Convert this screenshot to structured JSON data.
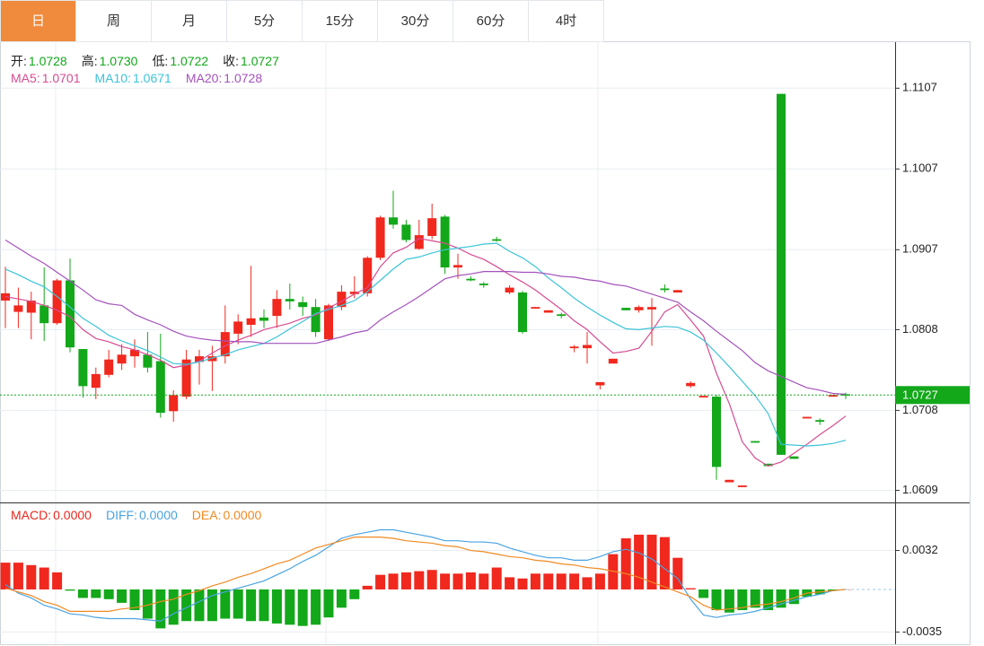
{
  "tabs": [
    "日",
    "周",
    "月",
    "5分",
    "15分",
    "30分",
    "60分",
    "4时"
  ],
  "active_tab": 0,
  "chart_data": [
    {
      "type": "candlestick",
      "info": [
        {
          "label": "开:",
          "value_label": "1.0728"
        },
        {
          "label": "高:",
          "value_label": "1.0730"
        },
        {
          "label": "低:",
          "value_label": "1.0722"
        },
        {
          "label": "收:",
          "value_label": "1.0727"
        }
      ],
      "open": [
        1.0844,
        1.083,
        1.0829,
        1.0838,
        1.0816,
        1.0869,
        1.0784,
        1.0736,
        1.0752,
        1.0766,
        1.0775,
        1.0777,
        1.0769,
        1.0707,
        1.0725,
        1.0768,
        1.0769,
        1.0775,
        1.0803,
        1.0814,
        1.0823,
        1.0825,
        1.0846,
        1.0842,
        1.0836,
        1.0796,
        1.0836,
        1.0852,
        1.0853,
        1.0897,
        1.0947,
        1.0938,
        1.0908,
        1.0924,
        1.0948,
        1.0885,
        1.0871,
        1.0865,
        1.092,
        1.0854,
        1.0854,
        1.0834,
        1.0829,
        1.0827,
        1.0785,
        1.0785,
        1.0739,
        1.0766,
        1.0835,
        1.0832,
        1.0833,
        1.0859,
        1.0854,
        1.0738,
        1.0724,
        1.0725,
        1.0619,
        1.0613,
        1.067,
        1.0642,
        1.11,
        1.0651,
        1.0698,
        1.0696,
        1.0725,
        1.0728
      ],
      "high": [
        1.0886,
        1.086,
        1.0855,
        1.0885,
        1.0871,
        1.0896,
        1.0784,
        1.0761,
        1.0783,
        1.079,
        1.0796,
        1.0805,
        1.0803,
        1.0733,
        1.0783,
        1.0783,
        1.0788,
        1.0838,
        1.0827,
        1.0887,
        1.0833,
        1.0857,
        1.0865,
        1.0849,
        1.0846,
        1.084,
        1.0863,
        1.0874,
        1.0899,
        1.0949,
        1.098,
        1.0944,
        1.0944,
        1.0964,
        1.095,
        1.0902,
        1.0874,
        1.0867,
        1.0923,
        1.0863,
        1.0856,
        1.0836,
        1.0832,
        1.0829,
        1.0789,
        1.0805,
        1.0743,
        1.0772,
        1.0835,
        1.0838,
        1.0847,
        1.0864,
        1.0857,
        1.0744,
        1.0726,
        1.0727,
        1.0622,
        1.0615,
        1.067,
        1.0642,
        1.11,
        1.0651,
        1.07,
        1.0698,
        1.0727,
        1.073
      ],
      "low": [
        1.081,
        1.081,
        1.0796,
        1.0794,
        1.0814,
        1.078,
        1.0724,
        1.0722,
        1.0749,
        1.0758,
        1.0761,
        1.0755,
        1.0699,
        1.0694,
        1.0722,
        1.074,
        1.0732,
        1.0766,
        1.079,
        1.0799,
        1.081,
        1.081,
        1.0833,
        1.0825,
        1.0799,
        1.0794,
        1.0832,
        1.0847,
        1.0849,
        1.0894,
        1.0933,
        1.0916,
        1.0907,
        1.092,
        1.0877,
        1.0871,
        1.0868,
        1.086,
        1.0917,
        1.0852,
        1.0803,
        1.0834,
        1.0829,
        1.0822,
        1.078,
        1.0766,
        1.0734,
        1.0766,
        1.0832,
        1.0829,
        1.0788,
        1.0854,
        1.0854,
        1.0736,
        1.0724,
        1.0622,
        1.0619,
        1.0613,
        1.0668,
        1.0639,
        1.0653,
        1.0648,
        1.0698,
        1.069,
        1.0725,
        1.0722
      ],
      "close": [
        1.0853,
        1.0838,
        1.0844,
        1.0816,
        1.0869,
        1.0786,
        1.0738,
        1.0753,
        1.0771,
        1.0777,
        1.0783,
        1.0761,
        1.0705,
        1.0727,
        1.0771,
        1.0775,
        1.0775,
        1.0805,
        1.0818,
        1.0822,
        1.0819,
        1.0846,
        1.0843,
        1.0836,
        1.0805,
        1.0838,
        1.0855,
        1.0855,
        1.0897,
        1.0947,
        1.0938,
        1.0919,
        1.0925,
        1.0946,
        1.0885,
        1.0888,
        1.0869,
        1.0863,
        1.0918,
        1.086,
        1.0805,
        1.0836,
        1.0832,
        1.0825,
        1.0787,
        1.0789,
        1.0743,
        1.0772,
        1.0832,
        1.0836,
        1.0836,
        1.0857,
        1.0857,
        1.0742,
        1.0726,
        1.0638,
        1.0622,
        1.0615,
        1.0668,
        1.0639,
        1.0653,
        1.0648,
        1.07,
        1.0694,
        1.0727,
        1.0727
      ],
      "up_color": "#f0281e",
      "down_color": "#12a81a",
      "series": [
        {
          "name": "MA5:",
          "color": "#d64c92",
          "values": [
            1.0849,
            1.0846,
            1.0843,
            1.0838,
            1.0832,
            1.0824,
            1.0808,
            1.0797,
            1.0793,
            1.0787,
            1.0783,
            1.0777,
            1.077,
            1.0761,
            1.0764,
            1.0769,
            1.0779,
            1.0788,
            1.0795,
            1.0801,
            1.0808,
            1.0812,
            1.0816,
            1.0822,
            1.0826,
            1.0835,
            1.0843,
            1.0852,
            1.086,
            1.0886,
            1.0903,
            1.091,
            1.0921,
            1.0918,
            1.0915,
            1.0909,
            1.0901,
            1.0895,
            1.0886,
            1.0876,
            1.0867,
            1.0857,
            1.0845,
            1.0833,
            1.0819,
            1.0808,
            1.0793,
            1.0779,
            1.0781,
            1.0785,
            1.0806,
            1.083,
            1.0839,
            1.082,
            1.08,
            1.0754,
            1.0716,
            1.0669,
            1.0649,
            1.0639,
            1.0644,
            1.0655,
            1.0666,
            1.0678,
            1.0689,
            1.0701
          ]
        },
        {
          "name": "MA10:",
          "color": "#3cc3d8",
          "values": [
            1.0883,
            1.0876,
            1.0868,
            1.0861,
            1.0849,
            1.0836,
            1.0822,
            1.0812,
            1.0801,
            1.0794,
            1.0788,
            1.0782,
            1.0774,
            1.0766,
            1.0765,
            1.0768,
            1.0773,
            1.0777,
            1.0783,
            1.0787,
            1.0791,
            1.0799,
            1.0809,
            1.0818,
            1.0828,
            1.0833,
            1.0838,
            1.0844,
            1.0855,
            1.0869,
            1.0883,
            1.0895,
            1.0898,
            1.0903,
            1.0907,
            1.0909,
            1.0911,
            1.0914,
            1.0915,
            1.0905,
            1.0897,
            1.0886,
            1.0872,
            1.086,
            1.0847,
            1.0836,
            1.0826,
            1.0817,
            1.0809,
            1.0808,
            1.081,
            1.0812,
            1.0811,
            1.0805,
            1.0795,
            1.0779,
            1.0762,
            1.0744,
            1.0726,
            1.0704,
            1.0666,
            1.0665,
            1.0664,
            1.0665,
            1.0667,
            1.0671
          ]
        },
        {
          "name": "MA20:",
          "color": "#a452bc",
          "values": [
            1.0919,
            1.0909,
            1.0899,
            1.089,
            1.0879,
            1.0868,
            1.0857,
            1.0845,
            1.084,
            1.0838,
            1.0827,
            1.082,
            1.0814,
            1.0806,
            1.08,
            1.0797,
            1.0795,
            1.0794,
            1.0793,
            1.0793,
            1.0791,
            1.0791,
            1.0791,
            1.0791,
            1.0791,
            1.0795,
            1.0799,
            1.0804,
            1.0807,
            1.082,
            1.083,
            1.0839,
            1.0849,
            1.086,
            1.0871,
            1.0875,
            1.0877,
            1.088,
            1.088,
            1.088,
            1.0879,
            1.0879,
            1.0877,
            1.0874,
            1.0873,
            1.087,
            1.0868,
            1.0864,
            1.0862,
            1.0857,
            1.0852,
            1.0847,
            1.0842,
            1.083,
            1.0819,
            1.0806,
            1.0794,
            1.0782,
            1.0767,
            1.0757,
            1.075,
            1.0743,
            1.0736,
            1.0733,
            1.0729,
            1.0728
          ]
        }
      ],
      "last_price": 1.0727,
      "last_color": "#12a81a",
      "ylim": [
        1.0594,
        1.1164
      ],
      "yticks": [
        1.1107,
        1.1007,
        1.0907,
        1.0808,
        1.0708,
        1.0609
      ],
      "grid": true
    },
    {
      "type": "macd",
      "up_color": "#f0281e",
      "down_color": "#12a81a",
      "series": [
        {
          "name": "MACD:",
          "color": "#e8281e",
          "value_label": "0.0000",
          "values": [
            0.0022,
            0.0022,
            0.002,
            0.0018,
            0.0014,
            -0.0001,
            -0.0007,
            -0.0007,
            -0.0008,
            -0.0011,
            -0.0017,
            -0.0024,
            -0.0032,
            -0.0029,
            -0.0026,
            -0.0026,
            -0.0026,
            -0.0024,
            -0.0024,
            -0.0026,
            -0.0026,
            -0.0028,
            -0.0029,
            -0.003,
            -0.0029,
            -0.0023,
            -0.0015,
            -0.0008,
            0.0003,
            0.0012,
            0.0013,
            0.0014,
            0.0015,
            0.0016,
            0.0013,
            0.0013,
            0.0014,
            0.0013,
            0.0018,
            0.001,
            0.0009,
            0.0013,
            0.0013,
            0.0013,
            0.0013,
            0.001,
            0.0013,
            0.0029,
            0.0042,
            0.0045,
            0.0045,
            0.0043,
            0.0026,
            0.0001,
            -0.0007,
            -0.0017,
            -0.0019,
            -0.0017,
            -0.0015,
            -0.0017,
            -0.0015,
            -0.0012,
            -0.0006,
            -0.0004,
            -0.0001,
            0
          ]
        },
        {
          "name": "DIFF:",
          "color": "#4aa3e0",
          "value_label": "0.0000",
          "values": [
            0.0004,
            -0.0003,
            -0.0007,
            -0.0013,
            -0.0016,
            -0.002,
            -0.0021,
            -0.0023,
            -0.0024,
            -0.0024,
            -0.0024,
            -0.0025,
            -0.0026,
            -0.002,
            -0.0015,
            -0.001,
            -0.0005,
            -0.0002,
            0.0001,
            0.0004,
            0.0007,
            0.0012,
            0.0017,
            0.0023,
            0.0028,
            0.0035,
            0.0042,
            0.0045,
            0.0047,
            0.0049,
            0.0049,
            0.0047,
            0.0045,
            0.0043,
            0.004,
            0.004,
            0.0039,
            0.0039,
            0.0038,
            0.0034,
            0.0031,
            0.0028,
            0.0026,
            0.0026,
            0.0024,
            0.0024,
            0.0027,
            0.0031,
            0.0033,
            0.003,
            0.0025,
            0.0017,
            0.0009,
            -0.0008,
            -0.0021,
            -0.0023,
            -0.0021,
            -0.002,
            -0.0018,
            -0.0015,
            -0.0012,
            -0.0009,
            -0.0006,
            -0.0004,
            -0.0001,
            0
          ]
        },
        {
          "name": "DEA:",
          "color": "#f08a24",
          "value_label": "0.0000",
          "values": [
            0.0001,
            -0.0002,
            -0.0005,
            -0.001,
            -0.0013,
            -0.0018,
            -0.0018,
            -0.0018,
            -0.0018,
            -0.0016,
            -0.0015,
            -0.0013,
            -0.001,
            -0.0008,
            -0.0004,
            -0.0001,
            0.0003,
            0.0006,
            0.001,
            0.0013,
            0.0017,
            0.0021,
            0.0024,
            0.0029,
            0.0034,
            0.0037,
            0.004,
            0.0043,
            0.0043,
            0.0043,
            0.0042,
            0.004,
            0.0039,
            0.0038,
            0.0036,
            0.0035,
            0.0032,
            0.0031,
            0.0029,
            0.0027,
            0.0026,
            0.0024,
            0.0023,
            0.0021,
            0.002,
            0.0018,
            0.0017,
            0.0015,
            0.0013,
            0.001,
            0.0006,
            0.0002,
            -0.0002,
            -0.0006,
            -0.0013,
            -0.0017,
            -0.0016,
            -0.0015,
            -0.0013,
            -0.0012,
            -0.001,
            -0.0007,
            -0.0003,
            -0.0002,
            -0.0001,
            0
          ]
        }
      ],
      "ylim": [
        -0.0045,
        0.007
      ],
      "yticks": [
        0.0032,
        -0.0035
      ],
      "grid": true
    }
  ]
}
